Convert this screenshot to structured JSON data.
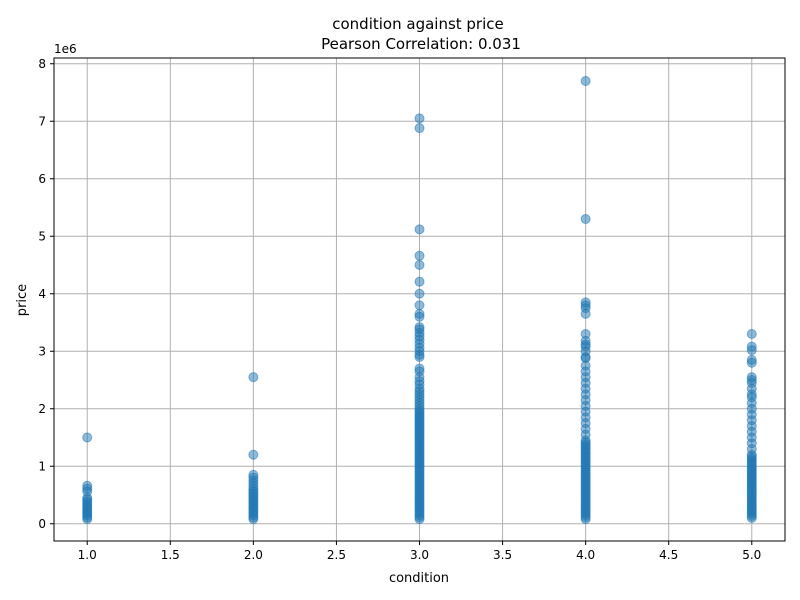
{
  "chart_data": {
    "type": "scatter",
    "title": "condition against price",
    "subtitle": "Pearson Correlation: 0.031",
    "xlabel": "condition",
    "ylabel": "price",
    "y_offset_label": "1e6",
    "xlim": [
      0.8,
      5.2
    ],
    "ylim": [
      -300000,
      8100000
    ],
    "x_ticks": [
      1.0,
      1.5,
      2.0,
      2.5,
      3.0,
      3.5,
      4.0,
      4.5,
      5.0
    ],
    "x_tick_labels": [
      "1.0",
      "1.5",
      "2.0",
      "2.5",
      "3.0",
      "3.5",
      "4.0",
      "4.5",
      "5.0"
    ],
    "y_ticks": [
      0,
      1000000,
      2000000,
      3000000,
      4000000,
      5000000,
      6000000,
      7000000,
      8000000
    ],
    "y_tick_labels": [
      "0",
      "1",
      "2",
      "3",
      "4",
      "5",
      "6",
      "7",
      "8"
    ],
    "grid": true,
    "marker_color": "#1f77b4",
    "series": [
      {
        "x": 1,
        "dense_range": [
          80000,
          450000
        ],
        "points": [
          1500000,
          660000,
          610000,
          560000
        ]
      },
      {
        "x": 2,
        "dense_range": [
          80000,
          600000
        ],
        "points": [
          2550000,
          1200000,
          850000,
          800000,
          750000,
          700000,
          650000
        ]
      },
      {
        "x": 3,
        "dense_range": [
          80000,
          2000000
        ],
        "points": [
          7050000,
          6880000,
          5120000,
          4660000,
          4500000,
          4210000,
          4000000,
          3800000,
          3650000,
          3600000,
          3420000,
          3380000,
          3320000,
          3260000,
          3200000,
          3130000,
          3060000,
          3000000,
          2940000,
          2900000,
          2700000,
          2650000,
          2550000,
          2480000,
          2420000,
          2350000,
          2300000,
          2250000,
          2200000,
          2150000,
          2100000,
          2050000
        ]
      },
      {
        "x": 4,
        "dense_range": [
          80000,
          1450000
        ],
        "points": [
          7700000,
          5300000,
          3850000,
          3800000,
          3750000,
          3650000,
          3300000,
          3180000,
          3120000,
          3080000,
          3000000,
          2900000,
          2880000,
          2750000,
          2650000,
          2550000,
          2450000,
          2350000,
          2250000,
          2150000,
          2050000,
          1950000,
          1850000,
          1750000,
          1650000,
          1550000
        ]
      },
      {
        "x": 5,
        "dense_range": [
          100000,
          1200000
        ],
        "points": [
          3300000,
          3080000,
          3020000,
          2850000,
          2800000,
          2550000,
          2500000,
          2450000,
          2350000,
          2250000,
          2200000,
          2100000,
          2000000,
          1900000,
          1800000,
          1700000,
          1600000,
          1500000,
          1400000,
          1300000
        ]
      }
    ]
  }
}
